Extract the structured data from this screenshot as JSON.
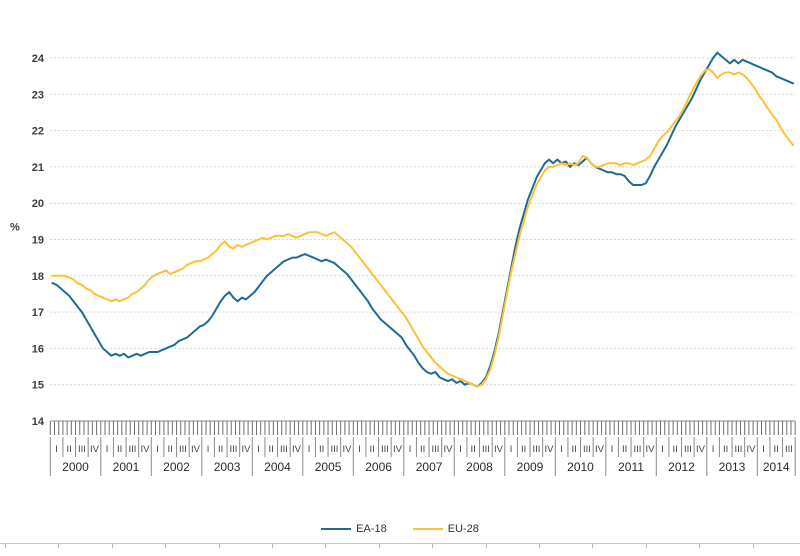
{
  "unit": "%",
  "legend": {
    "items": [
      {
        "label": "EA-18",
        "color": "#1f6b96"
      },
      {
        "label": "EU-28",
        "color": "#fbc237"
      }
    ]
  },
  "chart_data": {
    "type": "line",
    "title": "",
    "unit": "%",
    "grid": "dashed horizontal gridlines at each integer",
    "legend_position": "bottom-center",
    "y_axis": {
      "min": 14,
      "max": 24,
      "tick_step": 1,
      "tick_labels": [
        "14",
        "15",
        "16",
        "17",
        "18",
        "19",
        "20",
        "21",
        "22",
        "23",
        "24"
      ]
    },
    "x_axis": {
      "years": [
        "2000",
        "2001",
        "2002",
        "2003",
        "2004",
        "2005",
        "2006",
        "2007",
        "2008",
        "2009",
        "2010",
        "2011",
        "2012",
        "2013",
        "2014"
      ],
      "quarter_labels": [
        "I",
        "II",
        "III",
        "IV"
      ],
      "months_in_last_year": 9,
      "frequency": "monthly"
    },
    "series": [
      {
        "name": "EA-18",
        "color": "#1f6b96",
        "monthly_values": [
          17.8,
          17.75,
          17.65,
          17.55,
          17.45,
          17.3,
          17.15,
          17.0,
          16.8,
          16.6,
          16.4,
          16.2,
          16.0,
          15.9,
          15.8,
          15.85,
          15.8,
          15.85,
          15.75,
          15.8,
          15.85,
          15.8,
          15.85,
          15.9,
          15.9,
          15.9,
          15.95,
          16.0,
          16.05,
          16.1,
          16.2,
          16.25,
          16.3,
          16.4,
          16.5,
          16.6,
          16.65,
          16.75,
          16.9,
          17.1,
          17.3,
          17.45,
          17.55,
          17.4,
          17.3,
          17.4,
          17.35,
          17.45,
          17.55,
          17.7,
          17.85,
          18.0,
          18.1,
          18.2,
          18.3,
          18.4,
          18.45,
          18.5,
          18.5,
          18.55,
          18.6,
          18.55,
          18.5,
          18.45,
          18.4,
          18.45,
          18.4,
          18.35,
          18.25,
          18.15,
          18.05,
          17.9,
          17.75,
          17.6,
          17.45,
          17.3,
          17.1,
          16.95,
          16.8,
          16.7,
          16.6,
          16.5,
          16.4,
          16.3,
          16.1,
          15.95,
          15.8,
          15.6,
          15.45,
          15.35,
          15.3,
          15.35,
          15.2,
          15.15,
          15.1,
          15.15,
          15.05,
          15.1,
          15.0,
          15.05,
          15.0,
          14.95,
          15.05,
          15.2,
          15.5,
          15.9,
          16.4,
          17.0,
          17.6,
          18.2,
          18.8,
          19.3,
          19.7,
          20.1,
          20.4,
          20.7,
          20.9,
          21.1,
          21.2,
          21.1,
          21.2,
          21.1,
          21.15,
          21.0,
          21.1,
          21.05,
          21.15,
          21.25,
          21.1,
          21.0,
          20.95,
          20.9,
          20.85,
          20.85,
          20.8,
          20.8,
          20.75,
          20.6,
          20.5,
          20.5,
          20.5,
          20.55,
          20.75,
          21.0,
          21.2,
          21.4,
          21.6,
          21.85,
          22.1,
          22.3,
          22.5,
          22.7,
          22.9,
          23.15,
          23.4,
          23.6,
          23.8,
          24.0,
          24.15,
          24.05,
          23.95,
          23.85,
          23.95,
          23.85,
          23.95,
          23.9,
          23.85,
          23.8,
          23.75,
          23.7,
          23.65,
          23.6,
          23.5,
          23.45,
          23.4,
          23.35,
          23.3
        ]
      },
      {
        "name": "EU-28",
        "color": "#fbc237",
        "monthly_values": [
          18.0,
          18.0,
          18.0,
          18.0,
          17.95,
          17.9,
          17.8,
          17.75,
          17.65,
          17.6,
          17.5,
          17.45,
          17.4,
          17.35,
          17.3,
          17.35,
          17.3,
          17.35,
          17.4,
          17.5,
          17.55,
          17.65,
          17.75,
          17.9,
          18.0,
          18.05,
          18.1,
          18.15,
          18.05,
          18.1,
          18.15,
          18.2,
          18.3,
          18.35,
          18.4,
          18.4,
          18.45,
          18.5,
          18.6,
          18.7,
          18.85,
          18.95,
          18.8,
          18.75,
          18.85,
          18.8,
          18.85,
          18.9,
          18.95,
          19.0,
          19.05,
          19.0,
          19.05,
          19.1,
          19.1,
          19.1,
          19.15,
          19.1,
          19.05,
          19.1,
          19.15,
          19.2,
          19.2,
          19.2,
          19.15,
          19.1,
          19.15,
          19.2,
          19.1,
          19.0,
          18.9,
          18.8,
          18.65,
          18.5,
          18.35,
          18.2,
          18.05,
          17.9,
          17.75,
          17.6,
          17.45,
          17.3,
          17.15,
          17.0,
          16.85,
          16.65,
          16.45,
          16.25,
          16.05,
          15.9,
          15.75,
          15.6,
          15.5,
          15.4,
          15.3,
          15.25,
          15.2,
          15.15,
          15.1,
          15.05,
          15.0,
          14.95,
          15.0,
          15.15,
          15.4,
          15.8,
          16.3,
          16.9,
          17.5,
          18.1,
          18.6,
          19.1,
          19.5,
          19.9,
          20.2,
          20.5,
          20.7,
          20.9,
          21.0,
          21.0,
          21.05,
          21.1,
          21.05,
          21.1,
          21.05,
          21.1,
          21.3,
          21.25,
          21.1,
          21.0,
          21.0,
          21.05,
          21.1,
          21.1,
          21.1,
          21.05,
          21.1,
          21.1,
          21.05,
          21.1,
          21.15,
          21.2,
          21.3,
          21.5,
          21.7,
          21.85,
          21.95,
          22.1,
          22.25,
          22.4,
          22.6,
          22.85,
          23.1,
          23.3,
          23.5,
          23.65,
          23.7,
          23.6,
          23.45,
          23.55,
          23.6,
          23.6,
          23.55,
          23.6,
          23.55,
          23.45,
          23.3,
          23.15,
          22.95,
          22.8,
          22.6,
          22.45,
          22.3,
          22.1,
          21.9,
          21.75,
          21.6
        ]
      }
    ]
  }
}
